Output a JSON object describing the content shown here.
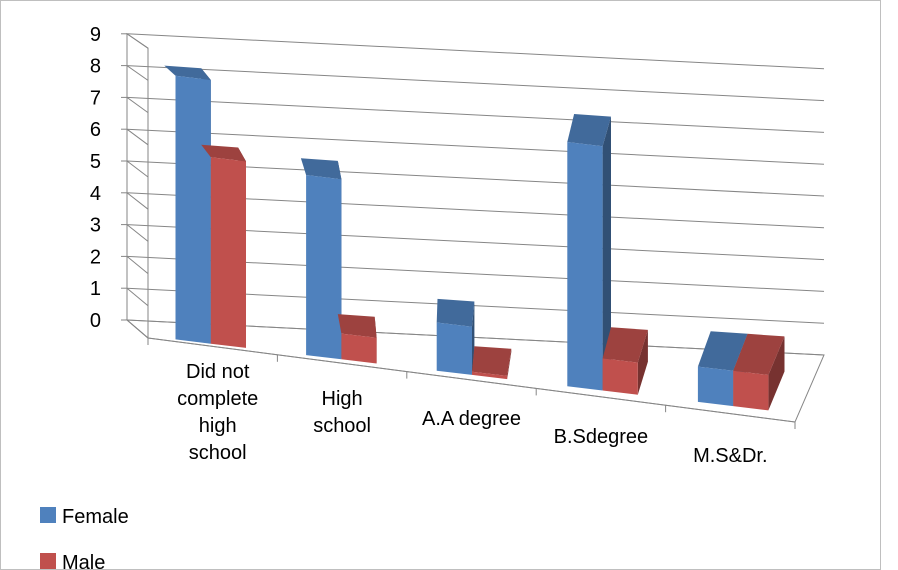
{
  "chart_data": {
    "type": "bar",
    "style": "3d-clustered-column",
    "categories": [
      [
        "Did not",
        "complete",
        "high",
        "school"
      ],
      [
        "High",
        "school"
      ],
      [
        "A.A degree"
      ],
      [
        "B.Sdegree"
      ],
      [
        "M.S&Dr."
      ]
    ],
    "series": [
      {
        "name": "Female",
        "values": [
          8.2,
          5.6,
          1.5,
          7.6,
          1.1
        ],
        "color": "#4f81bd"
      },
      {
        "name": "Male",
        "values": [
          5.8,
          0.8,
          0.1,
          1.0,
          1.1
        ],
        "color": "#c0504d"
      }
    ],
    "ylim": [
      0,
      9
    ],
    "yticks": [
      0,
      1,
      2,
      3,
      4,
      5,
      6,
      7,
      8,
      9
    ],
    "grid": true,
    "legend": "bottom-left",
    "title": "",
    "xlabel": "",
    "ylabel": ""
  }
}
